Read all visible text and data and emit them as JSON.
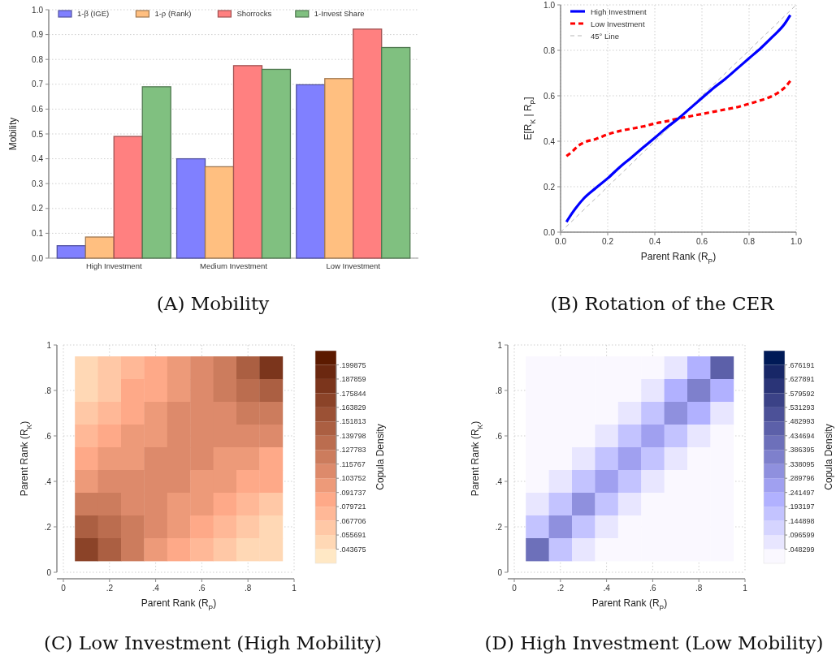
{
  "chart_data": [
    {
      "type": "bar",
      "title": "(A) Mobility",
      "ylabel": "Mobility",
      "categories": [
        "High Investment",
        "Medium Investment",
        "Low Investment"
      ],
      "series": [
        {
          "name": "1-β (IGE)",
          "color": "#8080ff",
          "values": [
            0.05,
            0.4,
            0.698
          ]
        },
        {
          "name": "1-ρ (Rank)",
          "color": "#ffbf80",
          "values": [
            0.085,
            0.368,
            0.723
          ]
        },
        {
          "name": "Shorrocks",
          "color": "#ff8080",
          "values": [
            0.49,
            0.775,
            0.922
          ]
        },
        {
          "name": "1-Invest Share",
          "color": "#80c080",
          "values": [
            0.69,
            0.76,
            0.848
          ]
        }
      ],
      "ylim": [
        0,
        1
      ],
      "yticks": [
        {
          "value": 0,
          "label": "0.0"
        },
        0.1,
        0.2,
        0.3,
        0.4,
        0.5,
        0.6,
        0.7,
        0.8,
        0.9,
        {
          "value": 1,
          "label": "1.0"
        }
      ],
      "grid": "y",
      "legend": "top left"
    },
    {
      "type": "line",
      "title": "(B) Rotation of the CER",
      "xlabel": "Parent Rank (R$_{P}$)",
      "ylabel": "E[R$_{K}$ | R$_{P}$]",
      "series": [
        {
          "name": "High Investment",
          "color": "#0000ff",
          "line_style": "solid",
          "x": [
            0.025,
            0.05,
            0.1,
            0.15,
            0.2,
            0.25,
            0.3,
            0.35,
            0.4,
            0.45,
            0.5,
            0.55,
            0.6,
            0.65,
            0.7,
            0.75,
            0.8,
            0.85,
            0.9,
            0.95,
            0.975
          ],
          "values": [
            0.045,
            0.085,
            0.15,
            0.195,
            0.237,
            0.285,
            0.328,
            0.372,
            0.415,
            0.46,
            0.5,
            0.545,
            0.59,
            0.635,
            0.675,
            0.72,
            0.765,
            0.81,
            0.86,
            0.915,
            0.955
          ]
        },
        {
          "name": "Low Investment",
          "color": "#ff0000",
          "line_style": "dashed",
          "x": [
            0.025,
            0.05,
            0.075,
            0.1,
            0.15,
            0.2,
            0.25,
            0.3,
            0.35,
            0.4,
            0.45,
            0.5,
            0.55,
            0.6,
            0.65,
            0.7,
            0.75,
            0.8,
            0.85,
            0.9,
            0.925,
            0.95,
            0.975
          ],
          "values": [
            0.335,
            0.355,
            0.38,
            0.395,
            0.41,
            0.43,
            0.445,
            0.455,
            0.465,
            0.478,
            0.488,
            0.5,
            0.51,
            0.52,
            0.53,
            0.54,
            0.55,
            0.565,
            0.58,
            0.6,
            0.615,
            0.635,
            0.665
          ]
        },
        {
          "name": "45° Line",
          "color": "#b4b4b4",
          "line_style": "dashed",
          "x": [
            0,
            1
          ],
          "values": [
            0,
            1
          ]
        }
      ],
      "xlim": [
        0,
        1
      ],
      "xticks": [
        {
          "value": 0,
          "label": "0.0"
        },
        0.2,
        0.4,
        0.6,
        0.8,
        {
          "value": 1,
          "label": "1.0"
        }
      ],
      "ylim": [
        0,
        1
      ],
      "yticks": [
        {
          "value": 0,
          "label": "0.0"
        },
        0.2,
        0.4,
        0.6,
        0.8,
        {
          "value": 1,
          "label": "1.0"
        }
      ],
      "grid": true,
      "legend": "top left"
    },
    {
      "type": "heatmap",
      "title": "(C) Low Investment (High Mobility)",
      "xlabel": "Parent Rank (R$_{P}$)",
      "ylabel": "Parent Rank (R$_{K}$)",
      "clabel": "Copula Density",
      "color": "#5c1a00",
      "x": [
        0.1,
        0.2,
        0.3,
        0.4,
        0.5,
        0.6,
        0.7,
        0.8,
        0.9
      ],
      "cells": [
        [
          0.045,
          0.06,
          0.075,
          0.085,
          0.095,
          0.11,
          0.125,
          0.145,
          0.18
        ],
        [
          0.05,
          0.065,
          0.08,
          0.09,
          0.1,
          0.11,
          0.12,
          0.135,
          0.15
        ],
        [
          0.06,
          0.075,
          0.085,
          0.095,
          0.105,
          0.112,
          0.115,
          0.12,
          0.125
        ],
        [
          0.07,
          0.085,
          0.095,
          0.1,
          0.11,
          0.112,
          0.11,
          0.11,
          0.108
        ],
        [
          0.085,
          0.095,
          0.1,
          0.108,
          0.112,
          0.11,
          0.1,
          0.095,
          0.09
        ],
        [
          0.1,
          0.105,
          0.11,
          0.112,
          0.11,
          0.1,
          0.095,
          0.085,
          0.08
        ],
        [
          0.12,
          0.118,
          0.115,
          0.112,
          0.1,
          0.095,
          0.085,
          0.075,
          0.065
        ],
        [
          0.14,
          0.13,
          0.12,
          0.108,
          0.095,
          0.085,
          0.075,
          0.065,
          0.055
        ],
        [
          0.17,
          0.14,
          0.12,
          0.1,
          0.085,
          0.075,
          0.065,
          0.055,
          0.045
        ]
      ],
      "clim": [
        0.031659,
        0.211891
      ],
      "cticks": [
        {
          "value": 0.043675,
          "label": ".043675"
        },
        {
          "value": 0.055691,
          "label": ".055691"
        },
        {
          "value": 0.067706,
          "label": ".067706"
        },
        {
          "value": 0.079721,
          "label": ".079721"
        },
        {
          "value": 0.091737,
          "label": ".091737"
        },
        {
          "value": 0.103752,
          "label": ".103752"
        },
        {
          "value": 0.115767,
          "label": ".115767"
        },
        {
          "value": 0.127783,
          "label": ".127783"
        },
        {
          "value": 0.139798,
          "label": ".139798"
        },
        {
          "value": 0.151813,
          "label": ".151813"
        },
        {
          "value": 0.163829,
          "label": ".163829"
        },
        {
          "value": 0.175844,
          "label": ".175844"
        },
        {
          "value": 0.187859,
          "label": ".187859"
        },
        {
          "value": 0.199875,
          "label": ".199875"
        }
      ],
      "xlim": [
        0,
        1
      ],
      "xticks": [
        0,
        {
          "value": 0.2,
          "label": ".2"
        },
        {
          "value": 0.4,
          "label": ".4"
        },
        {
          "value": 0.6,
          "label": ".6"
        },
        {
          "value": 0.8,
          "label": ".8"
        },
        1
      ],
      "ylim": [
        0,
        1
      ],
      "yticks": [
        0,
        {
          "value": 0.2,
          "label": ".2"
        },
        {
          "value": 0.4,
          "label": ".4"
        },
        {
          "value": 0.6,
          "label": ".6"
        },
        {
          "value": 0.8,
          "label": ".8"
        },
        1
      ],
      "grid": true
    },
    {
      "type": "heatmap",
      "title": "(D) High Investment (Low Mobility)",
      "xlabel": "Parent Rank (R$_{P}$)",
      "ylabel": "Parent Rank (R$_{K}$)",
      "clabel": "Copula Density",
      "color": "#001a57",
      "x": [
        0.1,
        0.2,
        0.3,
        0.4,
        0.5,
        0.6,
        0.7,
        0.8,
        0.9
      ],
      "cells": [
        [
          0,
          0,
          0,
          0,
          0,
          0.03,
          0.08,
          0.2,
          0.45
        ],
        [
          0,
          0,
          0,
          0,
          0.03,
          0.08,
          0.2,
          0.35,
          0.2
        ],
        [
          0,
          0,
          0,
          0.03,
          0.08,
          0.18,
          0.33,
          0.2,
          0.08
        ],
        [
          0,
          0,
          0.03,
          0.08,
          0.17,
          0.28,
          0.18,
          0.08,
          0.03
        ],
        [
          0,
          0.03,
          0.08,
          0.16,
          0.25,
          0.17,
          0.08,
          0.03,
          0
        ],
        [
          0.03,
          0.08,
          0.16,
          0.25,
          0.16,
          0.08,
          0.03,
          0,
          0
        ],
        [
          0.08,
          0.17,
          0.3,
          0.16,
          0.08,
          0.03,
          0,
          0,
          0
        ],
        [
          0.18,
          0.3,
          0.17,
          0.08,
          0.03,
          0,
          0,
          0,
          0
        ],
        [
          0.4,
          0.18,
          0.08,
          0.03,
          0,
          0,
          0,
          0,
          0
        ]
      ],
      "clim": [
        0,
        0.72449
      ],
      "cticks": [
        {
          "value": 0.048299,
          "label": ".048299"
        },
        {
          "value": 0.096599,
          "label": ".096599"
        },
        {
          "value": 0.144898,
          "label": ".144898"
        },
        {
          "value": 0.193197,
          "label": ".193197"
        },
        {
          "value": 0.241497,
          "label": ".241497"
        },
        {
          "value": 0.289796,
          "label": ".289796"
        },
        {
          "value": 0.338095,
          "label": ".338095"
        },
        {
          "value": 0.386395,
          "label": ".386395"
        },
        {
          "value": 0.434694,
          "label": ".434694"
        },
        {
          "value": 0.482993,
          "label": ".482993"
        },
        {
          "value": 0.531293,
          "label": ".531293"
        },
        {
          "value": 0.579592,
          "label": ".579592"
        },
        {
          "value": 0.627891,
          "label": ".627891"
        },
        {
          "value": 0.676191,
          "label": ".676191"
        }
      ],
      "xlim": [
        0,
        1
      ],
      "xticks": [
        0,
        {
          "value": 0.2,
          "label": ".2"
        },
        {
          "value": 0.4,
          "label": ".4"
        },
        {
          "value": 0.6,
          "label": ".6"
        },
        {
          "value": 0.8,
          "label": ".8"
        },
        1
      ],
      "ylim": [
        0,
        1
      ],
      "yticks": [
        0,
        {
          "value": 0.2,
          "label": ".2"
        },
        {
          "value": 0.4,
          "label": ".4"
        },
        {
          "value": 0.6,
          "label": ".6"
        },
        {
          "value": 0.8,
          "label": ".8"
        },
        1
      ],
      "grid": true
    }
  ]
}
